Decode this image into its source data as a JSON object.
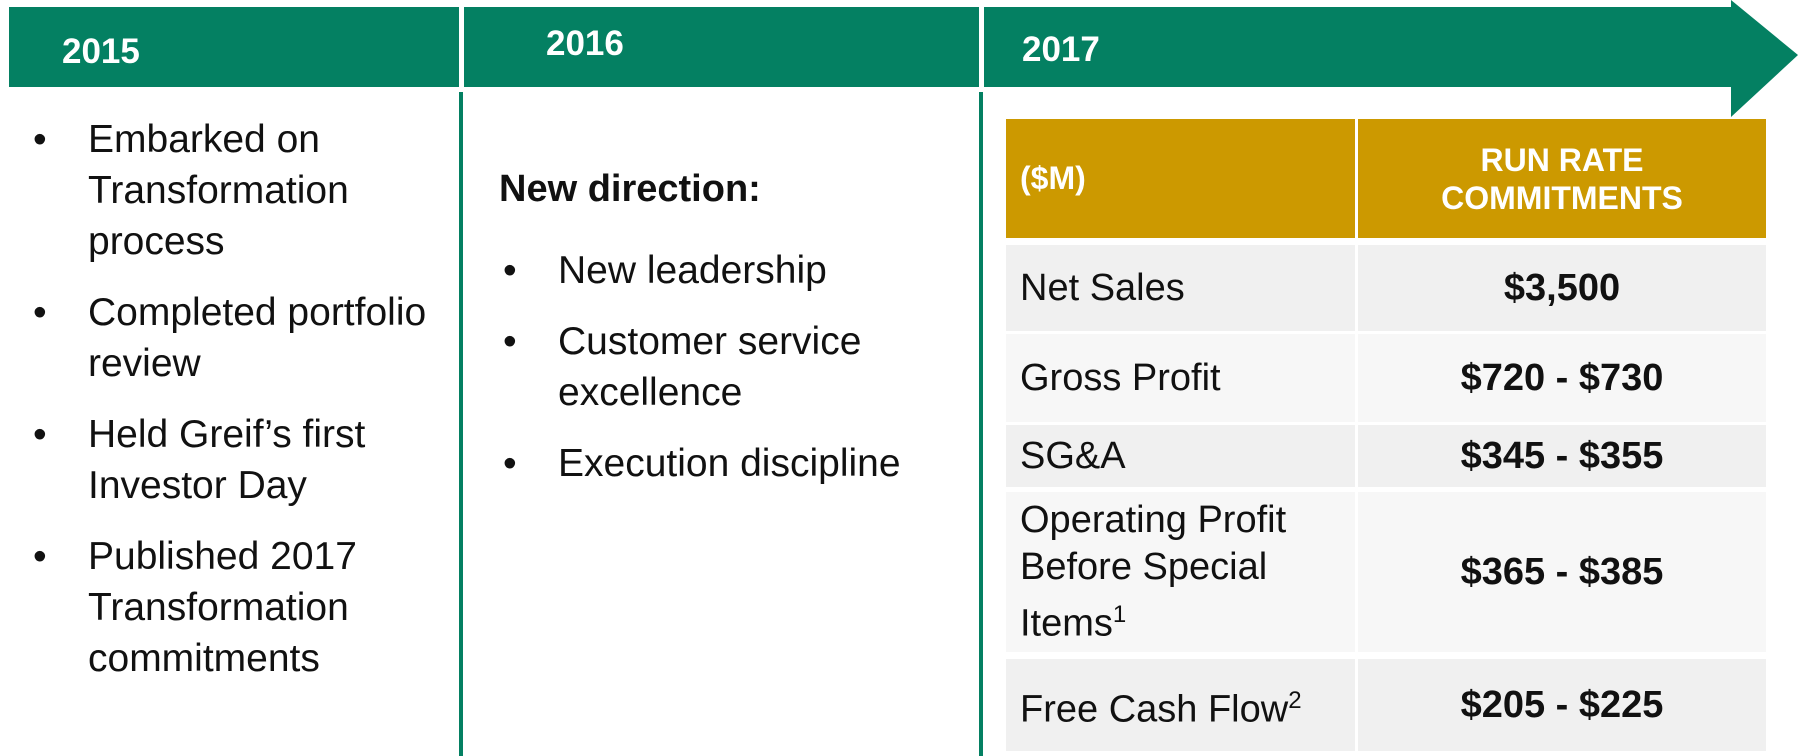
{
  "columns": [
    {
      "year": "2015",
      "bullets": [
        "Embarked on Transformation process",
        "Completed portfolio review",
        "Held Greif’s first Investor Day",
        "Published 2017 Transformation commitments"
      ]
    },
    {
      "year": "2016",
      "heading": "New direction:",
      "bullets": [
        "New leadership",
        "Customer service excellence",
        "Execution discipline"
      ]
    },
    {
      "year": "2017"
    }
  ],
  "table": {
    "header": [
      "($M)",
      "RUN RATE COMMITMENTS"
    ],
    "rows": [
      {
        "label": "Net Sales",
        "value": "$3,500"
      },
      {
        "label": "Gross Profit",
        "value": "$720 - $730"
      },
      {
        "label": "SG&A",
        "value": "$345 - $355"
      },
      {
        "label": "Operating Profit Before Special Items",
        "sup": "1",
        "value": "$365 - $385"
      },
      {
        "label": "Free Cash Flow",
        "sup": "2",
        "value": "$205 - $225"
      }
    ]
  }
}
